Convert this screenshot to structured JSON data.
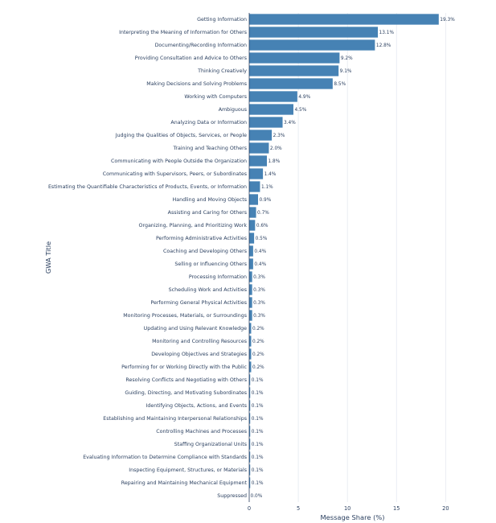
{
  "chart_data": {
    "type": "bar",
    "orientation": "horizontal",
    "title": "",
    "xlabel": "Message Share (%)",
    "ylabel": "GWA Title",
    "xlim": [
      0,
      21.2
    ],
    "xticks": [
      0,
      5,
      10,
      15,
      20
    ],
    "grid": true,
    "bar_color": "#4682b4",
    "categories": [
      "Getting Information",
      "Interpreting the Meaning of Information for Others",
      "Documenting/Recording Information",
      "Providing Consultation and Advice to Others",
      "Thinking Creatively",
      "Making Decisions and Solving Problems",
      "Working with Computers",
      "Ambiguous",
      "Analyzing Data or Information",
      "Judging the Qualities of Objects, Services, or People",
      "Training and Teaching Others",
      "Communicating with People Outside the Organization",
      "Communicating with Supervisors, Peers, or Subordinates",
      "Estimating the Quantifiable Characteristics of Products, Events, or Information",
      "Handling and Moving Objects",
      "Assisting and Caring for Others",
      "Organizing, Planning, and Prioritizing Work",
      "Performing Administrative Activities",
      "Coaching and Developing Others",
      "Selling or Influencing Others",
      "Processing Information",
      "Scheduling Work and Activities",
      "Performing General Physical Activities",
      "Monitoring Processes, Materials, or Surroundings",
      "Updating and Using Relevant Knowledge",
      "Monitoring and Controlling Resources",
      "Developing Objectives and Strategies",
      "Performing for or Working Directly with the Public",
      "Resolving Conflicts and Negotiating with Others",
      "Guiding, Directing, and Motivating Subordinates",
      "Identifying Objects, Actions, and Events",
      "Establishing and Maintaining Interpersonal Relationships",
      "Controlling Machines and Processes",
      "Staffing Organizational Units",
      "Evaluating Information to Determine Compliance with Standards",
      "Inspecting Equipment, Structures, or Materials",
      "Repairing and Maintaining Mechanical Equipment",
      "Suppressed"
    ],
    "values": [
      19.3,
      13.1,
      12.8,
      9.2,
      9.1,
      8.5,
      4.9,
      4.5,
      3.4,
      2.3,
      2.0,
      1.8,
      1.4,
      1.1,
      0.9,
      0.7,
      0.6,
      0.5,
      0.4,
      0.4,
      0.3,
      0.3,
      0.3,
      0.3,
      0.2,
      0.2,
      0.2,
      0.2,
      0.1,
      0.1,
      0.1,
      0.1,
      0.1,
      0.1,
      0.1,
      0.1,
      0.1,
      0.0
    ],
    "value_labels": [
      "19.3%",
      "13.1%",
      "12.8%",
      "9.2%",
      "9.1%",
      "8.5%",
      "4.9%",
      "4.5%",
      "3.4%",
      "2.3%",
      "2.0%",
      "1.8%",
      "1.4%",
      "1.1%",
      "0.9%",
      "0.7%",
      "0.6%",
      "0.5%",
      "0.4%",
      "0.4%",
      "0.3%",
      "0.3%",
      "0.3%",
      "0.3%",
      "0.2%",
      "0.2%",
      "0.2%",
      "0.2%",
      "0.1%",
      "0.1%",
      "0.1%",
      "0.1%",
      "0.1%",
      "0.1%",
      "0.1%",
      "0.1%",
      "0.1%",
      "0.0%"
    ]
  }
}
